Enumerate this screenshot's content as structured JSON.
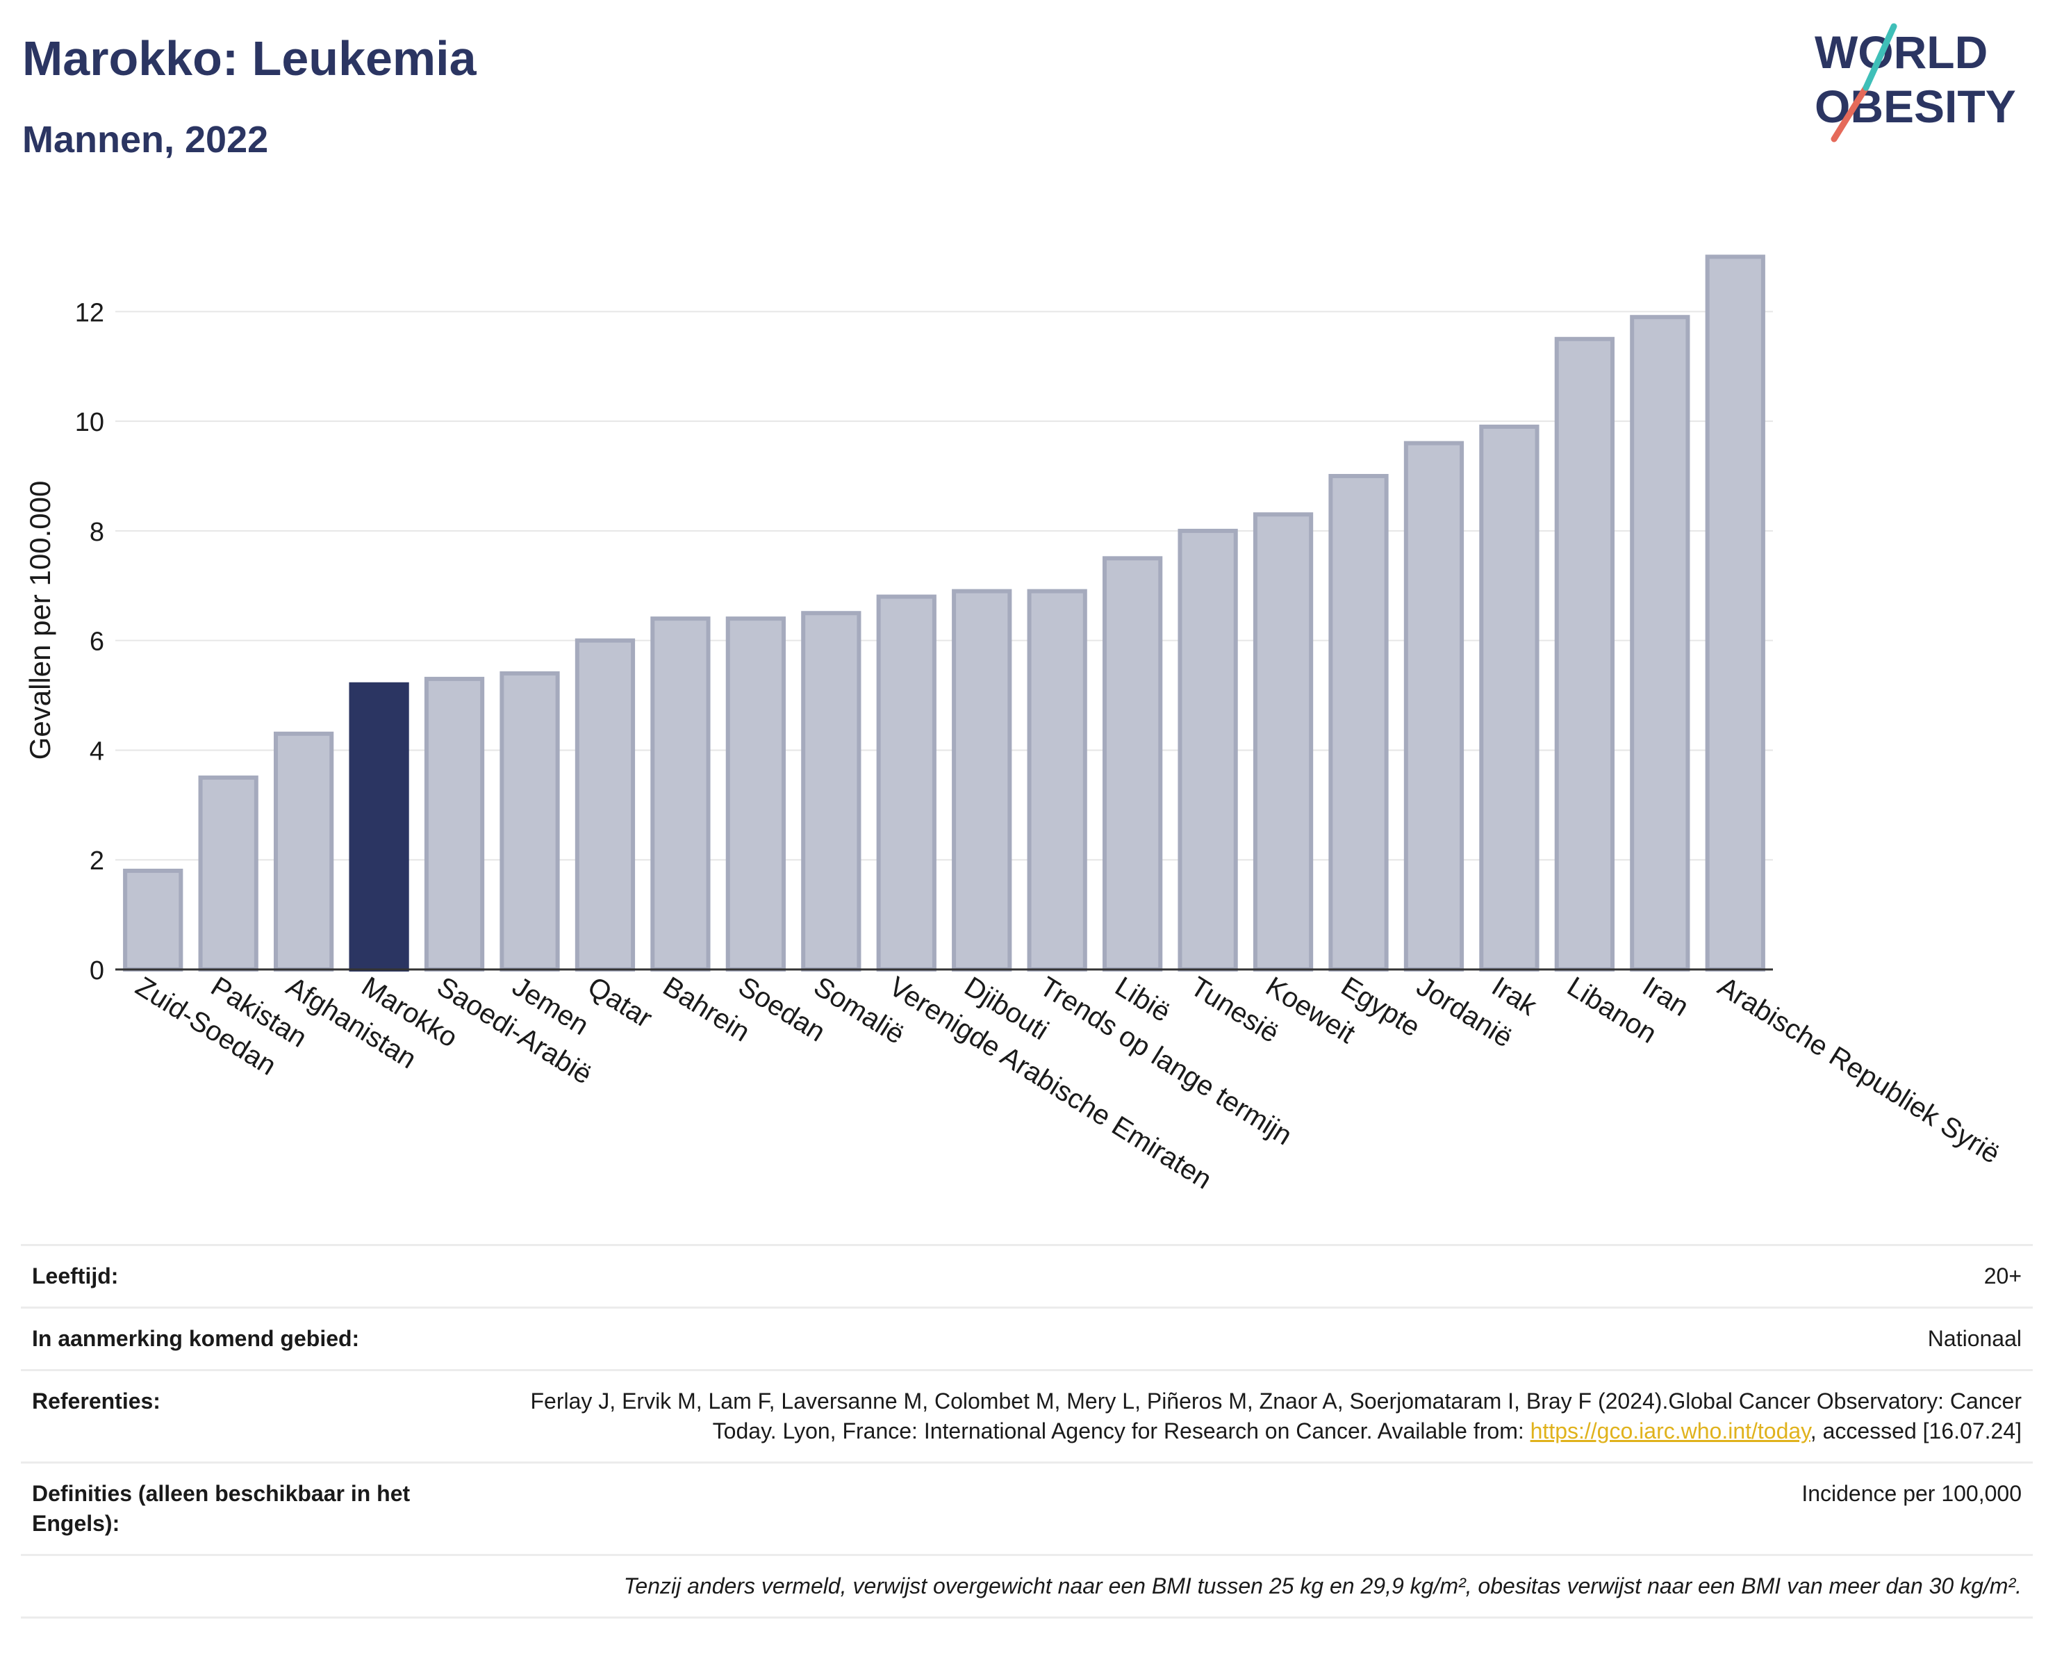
{
  "header": {
    "title": "Marokko: Leukemia",
    "subtitle": "Mannen, 2022"
  },
  "logo": {
    "line1": "WORLD",
    "line2": "OBESITY"
  },
  "colors": {
    "highlight": "#2b3562",
    "bar": "#bfc3d1",
    "bar_edge": "#a5aabd",
    "text": "#2b3562",
    "link": "#e0b21c"
  },
  "chart_data": {
    "type": "bar",
    "ylabel": "Gevallen per 100.000",
    "ylim": [
      0,
      13.5
    ],
    "yticks": [
      0,
      2,
      4,
      6,
      8,
      10,
      12
    ],
    "grid": true,
    "highlight": "Marokko",
    "categories": [
      "Zuid-Soedan",
      "Pakistan",
      "Afghanistan",
      "Marokko",
      "Saoedi-Arabië",
      "Jemen",
      "Qatar",
      "Bahrein",
      "Soedan",
      "Somalië",
      "Verenigde Arabische Emiraten",
      "Djibouti",
      "Trends op lange termijn",
      "Libië",
      "Tunesië",
      "Koeweit",
      "Egypte",
      "Jordanië",
      "Irak",
      "Libanon",
      "Iran",
      "Arabische Republiek Syrië"
    ],
    "values": [
      1.8,
      3.5,
      4.3,
      5.2,
      5.3,
      5.4,
      6.0,
      6.4,
      6.4,
      6.5,
      6.8,
      6.9,
      6.9,
      7.5,
      8.0,
      8.3,
      9.0,
      9.6,
      9.9,
      11.5,
      11.9,
      13.0
    ]
  },
  "info": {
    "age_label": "Leeftijd:",
    "age_value": "20+",
    "area_label": "In aanmerking komend gebied:",
    "area_value": "Nationaal",
    "ref_label": "Referenties:",
    "ref_text_1": "Ferlay J, Ervik M, Lam F, Laversanne M, Colombet M, Mery L, Piñeros M, Znaor A, Soerjomataram I, Bray F (2024).Global Cancer Observatory: Cancer Today. Lyon, France: International Agency for Research on Cancer. Available from: ",
    "ref_link": "https://gco.iarc.who.int/today",
    "ref_text_2": ", accessed [16.07.24]",
    "def_label": "Definities (alleen beschikbaar in het Engels):",
    "def_value": "Incidence per 100,000",
    "note": "Tenzij anders vermeld, verwijst overgewicht naar een BMI tussen 25 kg en 29,9 kg/m², obesitas verwijst naar een BMI van meer dan 30 kg/m²."
  }
}
